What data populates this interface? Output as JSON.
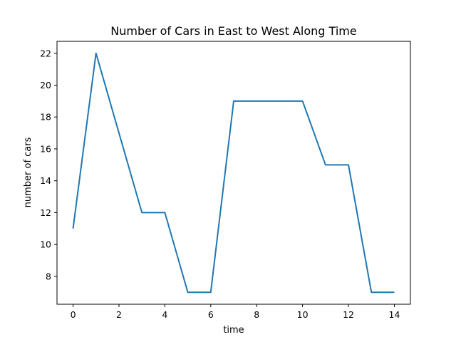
{
  "chart_data": {
    "type": "line",
    "title": "Number of Cars in East to West Along Time",
    "xlabel": "time",
    "ylabel": "number of cars",
    "x": [
      0,
      1,
      2,
      3,
      4,
      5,
      6,
      7,
      8,
      9,
      10,
      11,
      12,
      13,
      14
    ],
    "series": [
      {
        "values": [
          11,
          22,
          17,
          12,
          12,
          7,
          7,
          19,
          19,
          19,
          19,
          15,
          15,
          7,
          7
        ]
      }
    ],
    "xlim": [
      -0.7,
      14.7
    ],
    "ylim": [
      6.25,
      22.75
    ],
    "xticks": [
      0,
      2,
      4,
      6,
      8,
      10,
      12,
      14
    ],
    "yticks": [
      8,
      10,
      12,
      14,
      16,
      18,
      20,
      22
    ],
    "grid": false,
    "line_color": "#1f77b4"
  }
}
